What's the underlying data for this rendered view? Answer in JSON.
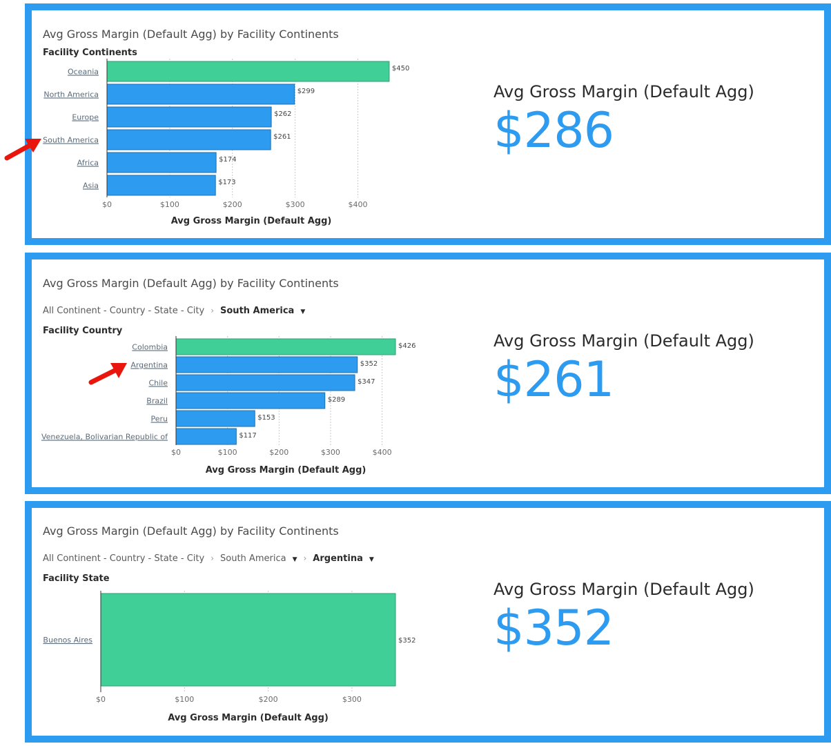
{
  "colors": {
    "accent": "#2d9bf0",
    "highlight": "#41cf98",
    "arrow": "#e8160c"
  },
  "panels": [
    {
      "title": "Avg Gross Margin (Default Agg) by Facility Continents",
      "breadcrumb": [],
      "kpi": {
        "label": "Avg Gross Margin (Default Agg)",
        "value": "$286"
      },
      "chart_data": {
        "type": "bar",
        "orientation": "horizontal",
        "category_axis_title": "Facility Continents",
        "xlabel": "Avg Gross Margin (Default Agg)",
        "categories": [
          "Oceania",
          "North America",
          "Europe",
          "South America",
          "Africa",
          "Asia"
        ],
        "values": [
          450,
          299,
          262,
          261,
          174,
          173
        ],
        "value_labels": [
          "$450",
          "$299",
          "$262",
          "$261",
          "$174",
          "$173"
        ],
        "highlight": [
          true,
          false,
          false,
          false,
          false,
          false
        ],
        "xlim": [
          0,
          460
        ],
        "ticks": [
          0,
          100,
          200,
          300,
          400
        ],
        "tick_labels": [
          "$0",
          "$100",
          "$200",
          "$300",
          "$400"
        ],
        "grid": true
      }
    },
    {
      "title": "Avg Gross Margin (Default Agg) by Facility Continents",
      "breadcrumb": [
        {
          "label": "All Continent - Country - State - City",
          "current": false,
          "dropdown": false
        },
        {
          "label": "South America",
          "current": true,
          "dropdown": true
        }
      ],
      "kpi": {
        "label": "Avg Gross Margin (Default Agg)",
        "value": "$261"
      },
      "chart_data": {
        "type": "bar",
        "orientation": "horizontal",
        "category_axis_title": "Facility Country",
        "xlabel": "Avg Gross Margin (Default Agg)",
        "categories": [
          "Colombia",
          "Argentina",
          "Chile",
          "Brazil",
          "Peru",
          "Venezuela, Bolivarian Republic of"
        ],
        "values": [
          426,
          352,
          347,
          289,
          153,
          117
        ],
        "value_labels": [
          "$426",
          "$352",
          "$347",
          "$289",
          "$153",
          "$117"
        ],
        "highlight": [
          true,
          false,
          false,
          false,
          false,
          false
        ],
        "xlim": [
          0,
          426
        ],
        "ticks": [
          0,
          100,
          200,
          300,
          400
        ],
        "tick_labels": [
          "$0",
          "$100",
          "$200",
          "$300",
          "$400"
        ],
        "grid": true
      }
    },
    {
      "title": "Avg Gross Margin (Default Agg) by Facility Continents",
      "breadcrumb": [
        {
          "label": "All Continent - Country - State - City",
          "current": false,
          "dropdown": false
        },
        {
          "label": "South America",
          "current": false,
          "dropdown": true
        },
        {
          "label": "Argentina",
          "current": true,
          "dropdown": true
        }
      ],
      "kpi": {
        "label": "Avg Gross Margin (Default Agg)",
        "value": "$352"
      },
      "chart_data": {
        "type": "bar",
        "orientation": "horizontal",
        "category_axis_title": "Facility State",
        "xlabel": "Avg Gross Margin (Default Agg)",
        "categories": [
          "Buenos Aires"
        ],
        "values": [
          352
        ],
        "value_labels": [
          "$352"
        ],
        "highlight": [
          true
        ],
        "xlim": [
          0,
          352
        ],
        "ticks": [
          0,
          100,
          200,
          300
        ],
        "tick_labels": [
          "$0",
          "$100",
          "$200",
          "$300"
        ],
        "grid": true
      }
    }
  ]
}
